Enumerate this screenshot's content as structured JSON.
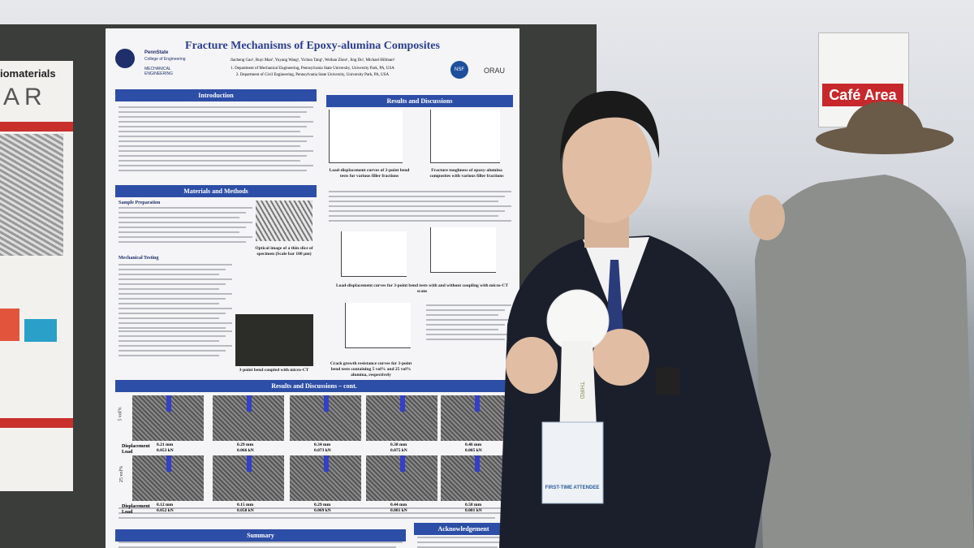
{
  "sign": {
    "text": "Café Area"
  },
  "left_poster": {
    "title": "iomaterials",
    "big": "AR"
  },
  "poster": {
    "title": "Fracture Mechanisms of Epoxy-alumina Composites",
    "authors": "Jiacheng Gao¹, Ruyi Man¹, Yuyang Wang¹, Yichun Tang¹, Weihan Zhou¹, Jing Du¹, Michael Hillman²",
    "affiliations": [
      "1. Department of Mechanical Engineering, Pennsylvania State University, University Park, PA, USA",
      "2. Department of Civil Engineering, Pennsylvania State University, University Park, PA, USA"
    ],
    "logos": {
      "pennstate": "PennState",
      "college": "College of Engineering",
      "dept": "MECHANICAL ENGINEERING",
      "nsf": "NSF",
      "orau": "ORAU"
    },
    "headings": {
      "introduction": "Introduction",
      "results": "Results and Discussions",
      "methods": "Materials and Methods",
      "results_cont": "Results and Discussions – cont.",
      "summary": "Summary",
      "acknowledgement": "Acknowledgement"
    },
    "subheadings": [
      "Sample Preparation",
      "Mechanical Testing"
    ],
    "captions": [
      "Load-displacement curves of 3-point bend tests for various filler fractions",
      "Fracture toughness of epoxy-alumina composites with various filler fractions",
      "Optical image of a thin slice of specimen (Scale bar 100 μm)",
      "Load-displacement curves for 3-point bend tests with and without coupling with micro-CT scans",
      "3-point bend coupled with micro-CT",
      "Crack growth resistance curves for 3-point bend tests containing 5 vol% and 25 vol% alumina, respectively"
    ],
    "ct": {
      "row_labels": [
        "Displacement",
        "Load"
      ],
      "rows": [
        {
          "label": "5 vol%",
          "frames": [
            {
              "disp": "0.21 mm",
              "load": "0.053 kN"
            },
            {
              "disp": "0.29 mm",
              "load": "0.066 kN"
            },
            {
              "disp": "0.34 mm",
              "load": "0.073 kN"
            },
            {
              "disp": "0.38 mm",
              "load": "0.075 kN"
            },
            {
              "disp": "0.46 mm",
              "load": "0.085 kN"
            }
          ]
        },
        {
          "label": "25 vol%",
          "frames": [
            {
              "disp": "0.12 mm",
              "load": "0.052 kN"
            },
            {
              "disp": "0.15 mm",
              "load": "0.058 kN"
            },
            {
              "disp": "0.29 mm",
              "load": "0.069 kN"
            },
            {
              "disp": "0.44 mm",
              "load": "0.081 kN"
            },
            {
              "disp": "0.58 mm",
              "load": "0.081 kN"
            }
          ]
        }
      ]
    }
  },
  "ribbon": {
    "text": "THIRD"
  },
  "badge": {
    "text": "FIRST-TIME ATTENDEE"
  }
}
